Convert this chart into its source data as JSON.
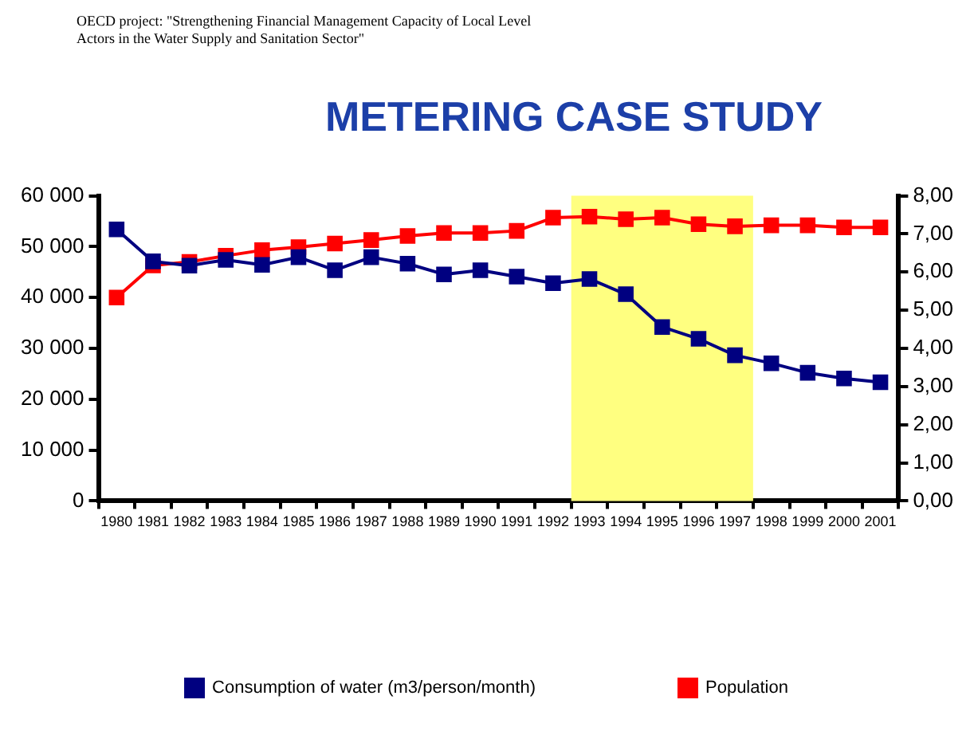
{
  "chart_data": {
    "type": "line",
    "title": "METERING CASE STUDY",
    "annotations": [
      "OECD project: \"Strengthening Financial Management Capacity of Local Level Actors in the Water Supply and Sanitation Sector\""
    ],
    "categories": [
      "1980",
      "1981",
      "1982",
      "1983",
      "1984",
      "1985",
      "1986",
      "1987",
      "1988",
      "1989",
      "1990",
      "1991",
      "1992",
      "1993",
      "1994",
      "1995",
      "1996",
      "1997",
      "1998",
      "1999",
      "2000",
      "2001"
    ],
    "series": [
      {
        "name": "Population",
        "color": "#ff0000",
        "values": [
          40000,
          46300,
          47000,
          48200,
          49300,
          49900,
          50600,
          51300,
          52100,
          52700,
          52700,
          53100,
          55700,
          55900,
          55400,
          55700,
          54400,
          54000,
          54200,
          54200,
          53800,
          53800
        ]
      },
      {
        "name": "Consumption of water (m3/person/month)",
        "color": "#000080",
        "axis": "y2",
        "values": [
          7.12,
          6.28,
          6.17,
          6.32,
          6.19,
          6.39,
          6.05,
          6.39,
          6.22,
          5.94,
          6.05,
          5.88,
          5.71,
          5.82,
          5.42,
          4.56,
          4.25,
          3.82,
          3.61,
          3.36,
          3.21,
          3.11
        ]
      }
    ],
    "ylim": [
      0,
      60000
    ],
    "yticks": [
      {
        "value": 0,
        "label": "0"
      },
      {
        "value": 10000,
        "label": "10 000"
      },
      {
        "value": 20000,
        "label": "20 000"
      },
      {
        "value": 30000,
        "label": "30 000"
      },
      {
        "value": 40000,
        "label": "40 000"
      },
      {
        "value": 50000,
        "label": "50 000"
      },
      {
        "value": 60000,
        "label": "60 000"
      }
    ],
    "y2lim": [
      0,
      8
    ],
    "y2ticks": [
      {
        "value": 0,
        "label": "0,00"
      },
      {
        "value": 1,
        "label": "1,00"
      },
      {
        "value": 2,
        "label": "2,00"
      },
      {
        "value": 3,
        "label": "3,00"
      },
      {
        "value": 4,
        "label": "4,00"
      },
      {
        "value": 5,
        "label": "5,00"
      },
      {
        "value": 6,
        "label": "6,00"
      },
      {
        "value": 7,
        "label": "7,00"
      },
      {
        "value": 8,
        "label": "8,00"
      }
    ],
    "bands": [
      {
        "axis": "x",
        "from": "1993",
        "to": "1997",
        "color": "#ffff80"
      }
    ],
    "grid": false,
    "legend": "bottom",
    "marker": "square",
    "line_style": "solid"
  }
}
